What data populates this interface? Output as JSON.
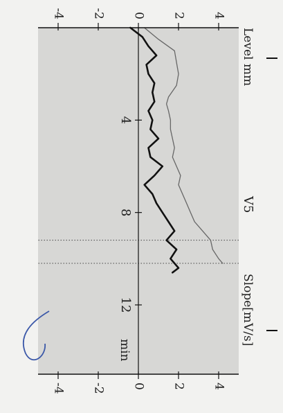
{
  "chart_data": {
    "type": "line",
    "title": "V5",
    "left_axis_label": "Level mm",
    "right_axis_label": "Slope[mV/s]",
    "x_unit_label": "min",
    "xlim": [
      0,
      15
    ],
    "x_ticks": [
      "4",
      "8",
      "12"
    ],
    "x_tick_values": [
      4,
      8,
      12
    ],
    "left_ylim": [
      -5,
      5
    ],
    "left_y_ticks": [
      "4",
      "2",
      "0",
      "-2",
      "-4"
    ],
    "left_y_tick_values": [
      4,
      2,
      0,
      -2,
      -4
    ],
    "right_ylim": [
      -5,
      5
    ],
    "right_y_ticks": [
      "4",
      "2",
      "0",
      "-2",
      "-4"
    ],
    "right_y_tick_values": [
      4,
      2,
      0,
      -2,
      -4
    ],
    "grid": false,
    "markers_x": [
      9.2,
      10.2
    ],
    "series": [
      {
        "axis": "left",
        "color": "#111111",
        "x": [
          0,
          0.4,
          0.8,
          1.2,
          1.6,
          2.0,
          2.4,
          2.8,
          3.2,
          3.6,
          4.0,
          4.4,
          4.8,
          5.2,
          5.6,
          6.0,
          6.4,
          6.8,
          7.2,
          7.6,
          8.0,
          8.4,
          8.8,
          9.2,
          9.6,
          10.0,
          10.4,
          10.6
        ],
        "values": [
          -0.4,
          0.2,
          0.5,
          0.9,
          0.4,
          0.5,
          0.8,
          0.7,
          0.8,
          0.5,
          0.7,
          0.6,
          1.0,
          0.5,
          0.6,
          1.2,
          0.8,
          0.3,
          0.7,
          0.9,
          1.2,
          1.5,
          1.8,
          1.4,
          1.9,
          1.6,
          2.0,
          1.7
        ]
      },
      {
        "axis": "right",
        "color": "#666666",
        "x": [
          0,
          0.5,
          1.0,
          1.5,
          2.0,
          2.5,
          3.0,
          3.3,
          3.6,
          4.0,
          4.4,
          4.8,
          5.2,
          5.6,
          6.0,
          6.4,
          6.8,
          7.2,
          7.6,
          8.0,
          8.4,
          8.8,
          9.2,
          9.6,
          10.0,
          10.2
        ],
        "values": [
          0.3,
          1.0,
          1.8,
          1.9,
          2.0,
          1.9,
          1.5,
          1.4,
          1.5,
          1.6,
          1.6,
          1.7,
          1.8,
          1.7,
          1.9,
          2.1,
          2.0,
          2.2,
          2.4,
          2.6,
          2.8,
          3.2,
          3.6,
          3.7,
          4.0,
          4.2
        ]
      }
    ]
  }
}
